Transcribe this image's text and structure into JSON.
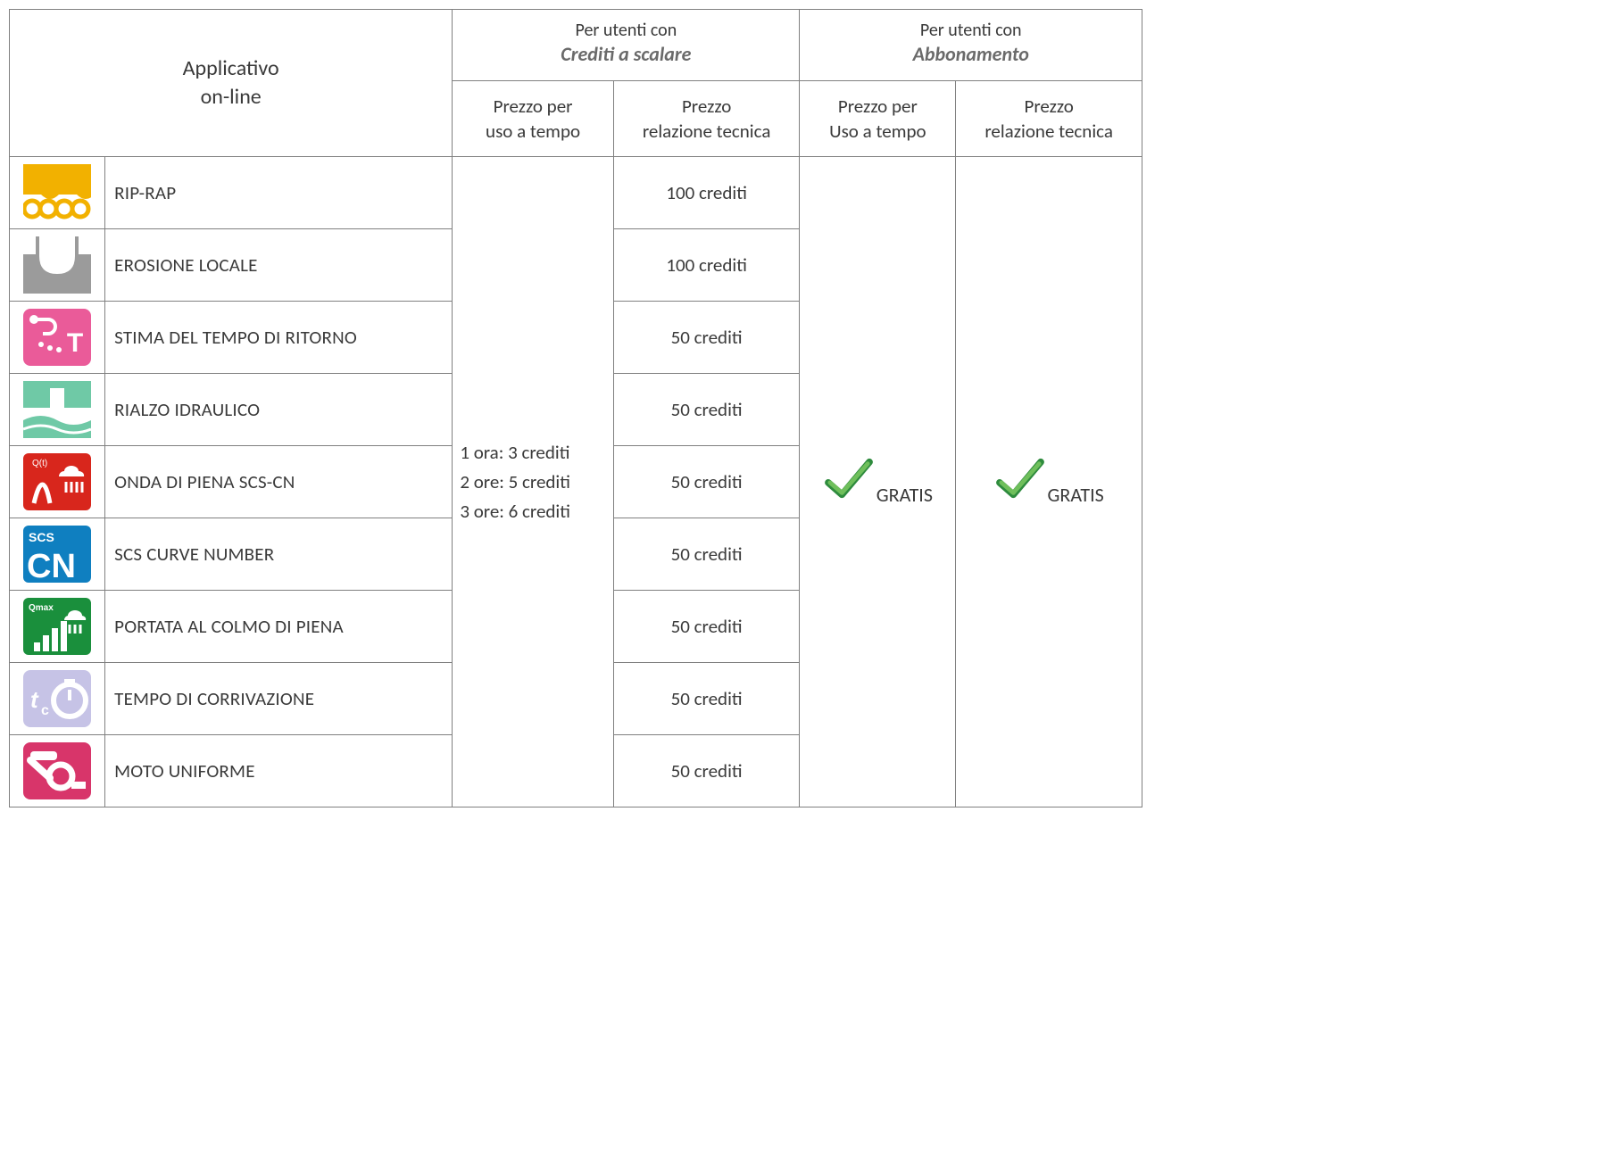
{
  "header": {
    "app_line1": "Applicativo",
    "app_line2": "on-line",
    "group_credits_line1": "Per utenti con",
    "group_credits_line2": "Crediti a scalare",
    "group_sub_line1": "Per utenti con",
    "group_sub_line2": "Abbonamento",
    "col_time_price_1a": "Prezzo per",
    "col_time_price_1b": "uso a tempo",
    "col_rel_price_1a": "Prezzo",
    "col_rel_price_1b": "relazione tecnica",
    "col_time_price_2a": "Prezzo per",
    "col_time_price_2b": "Uso a tempo",
    "col_rel_price_2a": "Prezzo",
    "col_rel_price_2b": "relazione tecnica"
  },
  "time_pricing": {
    "line1": "1 ora: 3 crediti",
    "line2": "2 ore: 5 crediti",
    "line3": "3 ore: 6 crediti"
  },
  "gratis_label": "GRATIS",
  "checkmark_color_fill": "#6fbf5b",
  "checkmark_color_stroke": "#2e8b3d",
  "rows": [
    {
      "name": "RIP-RAP",
      "credits": "100 crediti",
      "icon_bg": "#f2b100",
      "icon_fg": "#ffffff",
      "icon_kind": "riprap"
    },
    {
      "name": "EROSIONE LOCALE",
      "credits": "100 crediti",
      "icon_bg": "#9b9b9b",
      "icon_fg": "#ffffff",
      "icon_kind": "erosion"
    },
    {
      "name": "STIMA DEL TEMPO DI RITORNO",
      "credits": "50 crediti",
      "icon_bg": "#ea5b99",
      "icon_fg": "#ffffff",
      "icon_kind": "return"
    },
    {
      "name": "RIALZO IDRAULICO",
      "credits": "50 crediti",
      "icon_bg": "#6fc9a6",
      "icon_fg": "#ffffff",
      "icon_kind": "rise"
    },
    {
      "name": "ONDA DI PIENA SCS-CN",
      "credits": "50 crediti",
      "icon_bg": "#d8261c",
      "icon_fg": "#ffffff",
      "icon_kind": "flood"
    },
    {
      "name": "SCS CURVE NUMBER",
      "credits": "50 crediti",
      "icon_bg": "#0f7fc0",
      "icon_fg": "#ffffff",
      "icon_kind": "cn"
    },
    {
      "name": "PORTATA AL COLMO DI PIENA",
      "credits": "50 crediti",
      "icon_bg": "#1a8f3c",
      "icon_fg": "#ffffff",
      "icon_kind": "peak"
    },
    {
      "name": "TEMPO DI CORRIVAZIONE",
      "credits": "50 crediti",
      "icon_bg": "#c6c3e6",
      "icon_fg": "#ffffff",
      "icon_kind": "tc"
    },
    {
      "name": "MOTO UNIFORME",
      "credits": "50 crediti",
      "icon_bg": "#d8356a",
      "icon_fg": "#ffffff",
      "icon_kind": "uniform"
    }
  ]
}
